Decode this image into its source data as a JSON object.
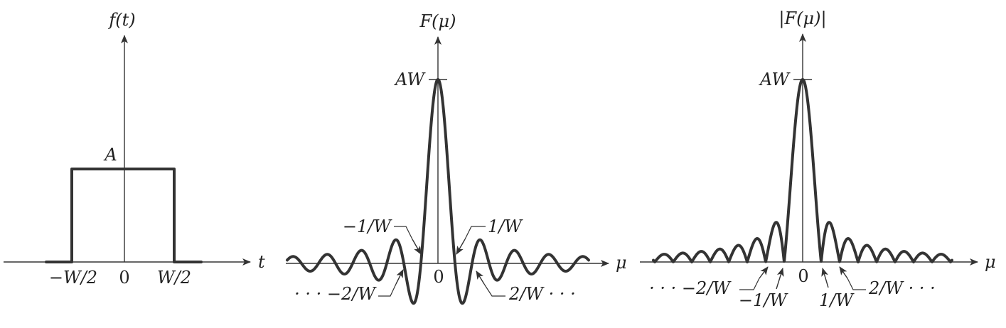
{
  "panel_rect": {
    "ylabel": "f(t)",
    "xlabel": "t",
    "amplitude_label": "A",
    "ticks": [
      "−W/2",
      "0",
      "W/2"
    ]
  },
  "panel_sinc": {
    "ylabel": "F(μ)",
    "xlabel": "μ",
    "peak_label": "AW",
    "origin_label": "0",
    "annotations": {
      "neg_first": "−1/W",
      "pos_first": "1/W",
      "neg_second": "· · · −2/W",
      "pos_second": "2/W · · ·"
    }
  },
  "panel_mag": {
    "ylabel": "|F(μ)|",
    "xlabel": "μ",
    "peak_label": "AW",
    "origin_label": "0",
    "annotations": {
      "neg_second": "· · · −2/W",
      "neg_first": "−1/W",
      "pos_first": "1/W",
      "pos_second": "2/W · · ·"
    }
  }
}
